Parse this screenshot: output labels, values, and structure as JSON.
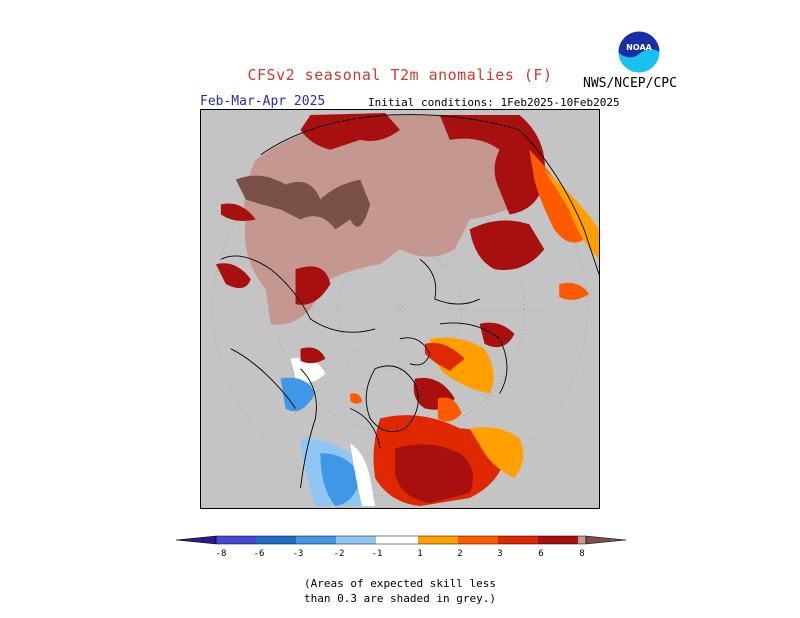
{
  "title": "CFSv2 seasonal T2m anomalies (F)",
  "source": "NWS/NCEP/CPC",
  "period": "Feb-Mar-Apr 2025",
  "initial_conditions": "Initial conditions: 1Feb2025-10Feb2025",
  "logo_text": "NOAA",
  "note_line1": "(Areas of expected skill less",
  "note_line2": "than 0.3 are shaded in grey.)",
  "colors": {
    "no_skill": "#c4c4c4",
    "ocean_outline": "#000000",
    "c_lt_-8": "#2a1a8f",
    "c_-8_-6": "#4848d8",
    "c_-6_-3": "#1f6fc8",
    "c_-3_-2": "#3f97e6",
    "c_-2_-1": "#8fc6f2",
    "c_-1_1": "#ffffff",
    "c_1_2": "#ffa000",
    "c_2_3": "#ff5a00",
    "c_3_6": "#e02800",
    "c_6_8": "#a81010",
    "c_8_plus": "#c49890",
    "c_gt_8": "#7a5048"
  },
  "colorbar": {
    "ticks": [
      "-8",
      "-6",
      "-3",
      "-2",
      "-1",
      "1",
      "2",
      "3",
      "6",
      "8"
    ]
  }
}
